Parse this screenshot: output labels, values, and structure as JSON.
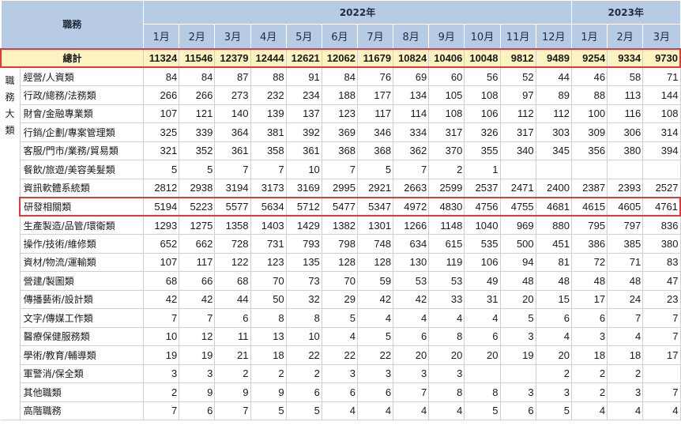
{
  "header": {
    "job_label": "職務",
    "year_2022": "2022年",
    "year_2023": "2023年",
    "months_2022": [
      "1月",
      "2月",
      "3月",
      "4月",
      "5月",
      "6月",
      "7月",
      "8月",
      "9月",
      "10月",
      "11月",
      "12月"
    ],
    "months_2023": [
      "1月",
      "2月",
      "3月"
    ]
  },
  "total_row": {
    "label": "總計",
    "values": [
      "11324",
      "11546",
      "12379",
      "12444",
      "12621",
      "12062",
      "11679",
      "10824",
      "10406",
      "10048",
      "9812",
      "9489",
      "9254",
      "9334",
      "9730"
    ]
  },
  "group_label": "職\n務\n大\n類",
  "rows": [
    {
      "label": "經營/人資類",
      "values": [
        "84",
        "84",
        "87",
        "88",
        "91",
        "84",
        "76",
        "69",
        "60",
        "56",
        "52",
        "44",
        "46",
        "58",
        "71"
      ]
    },
    {
      "label": "行政/總務/法務類",
      "values": [
        "266",
        "266",
        "273",
        "232",
        "234",
        "188",
        "177",
        "134",
        "105",
        "108",
        "97",
        "89",
        "88",
        "113",
        "144"
      ]
    },
    {
      "label": "財會/金融專業類",
      "values": [
        "107",
        "121",
        "140",
        "139",
        "137",
        "123",
        "117",
        "114",
        "108",
        "106",
        "112",
        "112",
        "100",
        "116",
        "108"
      ]
    },
    {
      "label": "行銷/企劃/專案管理類",
      "values": [
        "325",
        "339",
        "364",
        "381",
        "392",
        "369",
        "346",
        "334",
        "317",
        "326",
        "317",
        "303",
        "309",
        "306",
        "314"
      ]
    },
    {
      "label": "客服/門市/業務/貿易類",
      "values": [
        "321",
        "352",
        "361",
        "358",
        "361",
        "368",
        "368",
        "362",
        "370",
        "355",
        "340",
        "345",
        "356",
        "380",
        "394"
      ]
    },
    {
      "label": "餐飲/旅遊/美容美髮類",
      "values": [
        "5",
        "5",
        "7",
        "7",
        "10",
        "7",
        "5",
        "7",
        "2",
        "1",
        "",
        "",
        "",
        "",
        ""
      ]
    },
    {
      "label": "資訊軟體系統類",
      "values": [
        "2812",
        "2938",
        "3194",
        "3173",
        "3169",
        "2995",
        "2921",
        "2663",
        "2599",
        "2537",
        "2471",
        "2400",
        "2387",
        "2393",
        "2527"
      ]
    },
    {
      "label": "研發相關類",
      "highlight": true,
      "values": [
        "5194",
        "5223",
        "5577",
        "5634",
        "5712",
        "5477",
        "5347",
        "4972",
        "4830",
        "4756",
        "4755",
        "4681",
        "4615",
        "4605",
        "4761"
      ]
    },
    {
      "label": "生產製造/品管/環衛類",
      "values": [
        "1293",
        "1275",
        "1358",
        "1403",
        "1429",
        "1382",
        "1301",
        "1266",
        "1148",
        "1040",
        "969",
        "880",
        "795",
        "797",
        "836"
      ]
    },
    {
      "label": "操作/技術/維修類",
      "values": [
        "652",
        "662",
        "728",
        "731",
        "793",
        "798",
        "748",
        "634",
        "615",
        "535",
        "500",
        "451",
        "386",
        "385",
        "380"
      ]
    },
    {
      "label": "資材/物流/運輸類",
      "values": [
        "107",
        "117",
        "122",
        "123",
        "135",
        "128",
        "128",
        "130",
        "119",
        "106",
        "94",
        "81",
        "72",
        "71",
        "83"
      ]
    },
    {
      "label": "營建/製圖類",
      "values": [
        "68",
        "66",
        "68",
        "70",
        "73",
        "70",
        "59",
        "53",
        "53",
        "49",
        "48",
        "48",
        "48",
        "48",
        "47"
      ]
    },
    {
      "label": "傳播藝術/設計類",
      "values": [
        "42",
        "42",
        "44",
        "50",
        "32",
        "29",
        "42",
        "42",
        "33",
        "31",
        "20",
        "15",
        "17",
        "24",
        "23"
      ]
    },
    {
      "label": "文字/傳媒工作類",
      "values": [
        "7",
        "7",
        "6",
        "8",
        "8",
        "5",
        "4",
        "4",
        "4",
        "4",
        "5",
        "6",
        "6",
        "7",
        "7"
      ]
    },
    {
      "label": "醫療保健服務類",
      "values": [
        "10",
        "12",
        "11",
        "13",
        "10",
        "4",
        "5",
        "6",
        "8",
        "6",
        "3",
        "4",
        "3",
        "4",
        "7"
      ]
    },
    {
      "label": "學術/教育/輔導類",
      "values": [
        "19",
        "19",
        "21",
        "18",
        "22",
        "22",
        "22",
        "20",
        "20",
        "20",
        "19",
        "20",
        "18",
        "18",
        "17"
      ]
    },
    {
      "label": "軍警消/保全類",
      "values": [
        "3",
        "3",
        "2",
        "2",
        "2",
        "3",
        "3",
        "3",
        "3",
        "",
        "",
        "2",
        "2",
        "2",
        ""
      ]
    },
    {
      "label": "其他職類",
      "values": [
        "2",
        "9",
        "9",
        "9",
        "6",
        "6",
        "6",
        "7",
        "8",
        "8",
        "3",
        "3",
        "2",
        "3",
        "7"
      ]
    },
    {
      "label": "高階職務",
      "values": [
        "7",
        "6",
        "7",
        "5",
        "5",
        "4",
        "4",
        "4",
        "4",
        "5",
        "6",
        "5",
        "4",
        "4",
        "4"
      ]
    }
  ],
  "colors": {
    "header_bg": "#b7cbe5",
    "total_bg": "#fbf3c2",
    "highlight_border": "#e53935"
  }
}
